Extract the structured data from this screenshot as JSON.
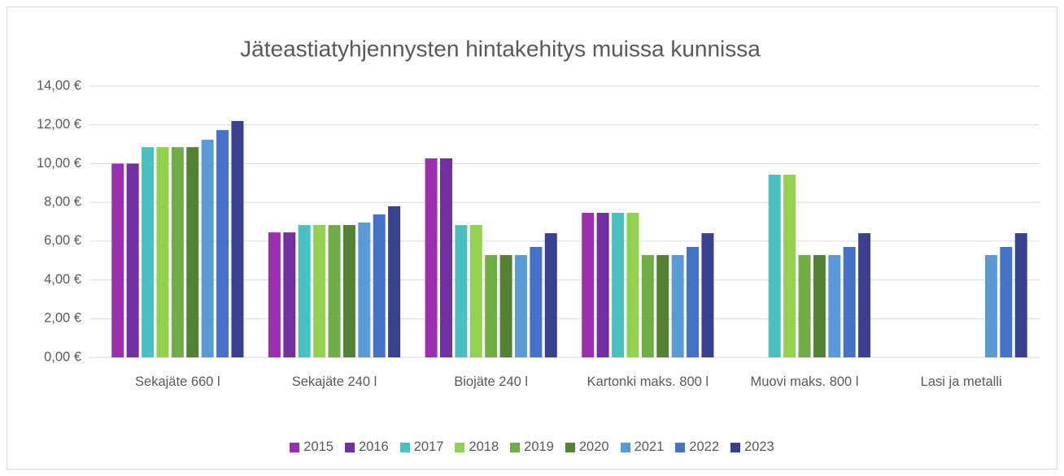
{
  "chart_data": {
    "type": "bar",
    "title": "Jäteastiatyhjennysten hintakehitys muissa kunnissa",
    "categories": [
      "Sekajäte 660 l",
      "Sekajäte 240 l",
      "Biojäte 240 l",
      "Kartonki maks. 800 l",
      "Muovi maks. 800 l",
      "Lasi ja metalli"
    ],
    "series": [
      {
        "name": "2015",
        "color": "#9c2fae",
        "values": [
          10.0,
          6.45,
          10.27,
          7.46,
          null,
          null
        ]
      },
      {
        "name": "2016",
        "color": "#7030a0",
        "values": [
          10.0,
          6.45,
          10.27,
          7.46,
          null,
          null
        ]
      },
      {
        "name": "2017",
        "color": "#4bc0c0",
        "values": [
          10.85,
          6.83,
          6.83,
          7.46,
          9.43,
          null
        ]
      },
      {
        "name": "2018",
        "color": "#92d050",
        "values": [
          10.85,
          6.83,
          6.83,
          7.46,
          9.43,
          null
        ]
      },
      {
        "name": "2019",
        "color": "#70ad47",
        "values": [
          10.85,
          6.83,
          5.28,
          5.28,
          5.28,
          null
        ]
      },
      {
        "name": "2020",
        "color": "#548235",
        "values": [
          10.85,
          6.83,
          5.28,
          5.28,
          5.28,
          null
        ]
      },
      {
        "name": "2021",
        "color": "#5b9bd5",
        "values": [
          11.23,
          6.96,
          5.28,
          5.28,
          5.28,
          5.28
        ]
      },
      {
        "name": "2022",
        "color": "#4472c4",
        "values": [
          11.73,
          7.38,
          5.7,
          5.7,
          5.7,
          5.7
        ]
      },
      {
        "name": "2023",
        "color": "#3b3f8f",
        "values": [
          12.2,
          7.8,
          6.41,
          6.41,
          6.41,
          6.41
        ]
      }
    ],
    "ylim": [
      0,
      14
    ],
    "yticks": [
      {
        "value": 0,
        "label": "0,00 €"
      },
      {
        "value": 2,
        "label": "2,00 €"
      },
      {
        "value": 4,
        "label": "4,00 €"
      },
      {
        "value": 6,
        "label": "6,00 €"
      },
      {
        "value": 8,
        "label": "8,00 €"
      },
      {
        "value": 10,
        "label": "10,00 €"
      },
      {
        "value": 12,
        "label": "12,00 €"
      },
      {
        "value": 14,
        "label": "14,00 €"
      }
    ],
    "grid": true,
    "legend": "bottom"
  }
}
